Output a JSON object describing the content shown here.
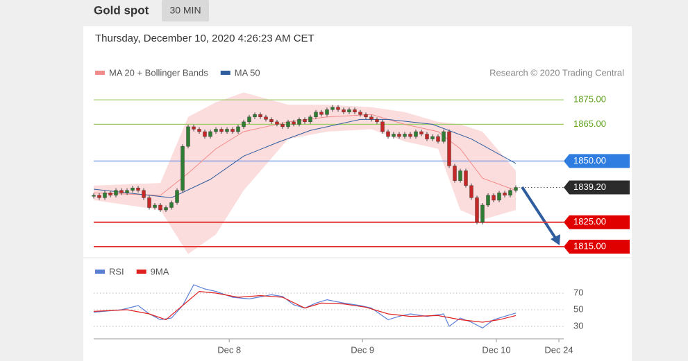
{
  "header": {
    "title": "Gold spot",
    "interval": "30 MIN"
  },
  "chart_data": [
    {
      "type": "candlestick",
      "subtitle": "Thursday, December 10, 2020 4:26:23 AM CET",
      "source": "Research © 2020 Trading Central",
      "up_color": "#2f7d32",
      "down_color": "#c62828",
      "close": [
        1836,
        1835,
        1837,
        1836,
        1838,
        1837,
        1838,
        1839,
        1838,
        1835,
        1831,
        1832,
        1830,
        1831,
        1833,
        1838,
        1856,
        1864,
        1863,
        1862,
        1860,
        1862,
        1863,
        1862,
        1863,
        1862,
        1864,
        1866,
        1868,
        1869,
        1868,
        1867,
        1866,
        1865,
        1864,
        1866,
        1865,
        1867,
        1866,
        1868,
        1870,
        1869,
        1871,
        1872,
        1871,
        1870,
        1871,
        1870,
        1869,
        1868,
        1867,
        1866,
        1862,
        1860,
        1861,
        1860,
        1861,
        1860,
        1862,
        1861,
        1859,
        1860,
        1858,
        1862,
        1848,
        1842,
        1846,
        1840,
        1835,
        1825,
        1832,
        1836,
        1834,
        1837,
        1836,
        1838,
        1839.2
      ],
      "series": [
        {
          "name": "MA 20 + Bollinger Bands",
          "color": "#f28b8b",
          "band_color": "#fbd5d5",
          "x": [
            0,
            12,
            17,
            22,
            27,
            35,
            42,
            50,
            56,
            62,
            66,
            70,
            76
          ],
          "values": [
            1837,
            1836,
            1845,
            1855,
            1862,
            1866,
            1868,
            1869,
            1865,
            1862,
            1855,
            1843,
            1838
          ],
          "upper": [
            1840,
            1841,
            1868,
            1874,
            1878,
            1873,
            1873,
            1872,
            1870,
            1866,
            1865,
            1862,
            1846
          ],
          "lower": [
            1834,
            1830,
            1812,
            1820,
            1838,
            1859,
            1862,
            1863,
            1858,
            1855,
            1830,
            1826,
            1830
          ]
        },
        {
          "name": "MA 50",
          "color": "#2f5d9e",
          "x": [
            0,
            14,
            21,
            27,
            33,
            39,
            48,
            53,
            61,
            68,
            76
          ],
          "values": [
            1838.5,
            1835,
            1842.5,
            1852,
            1857.5,
            1862.5,
            1867,
            1867,
            1865,
            1859,
            1849
          ]
        }
      ],
      "levels": [
        {
          "value": 1875,
          "label": "1875.00",
          "color": "#9ccc65",
          "text_color": "#5da31a",
          "style": "text"
        },
        {
          "value": 1865,
          "label": "1865.00",
          "color": "#9ccc65",
          "text_color": "#5da31a",
          "style": "text"
        },
        {
          "value": 1850,
          "label": "1850.00",
          "color": "#6d95e8",
          "text_color": "#ffffff",
          "tag_color": "#2f7de1",
          "style": "tag"
        },
        {
          "value": 1839.2,
          "label": "1839.20",
          "color": "#555555",
          "text_color": "#ffffff",
          "tag_color": "#2b2b2b",
          "style": "current"
        },
        {
          "value": 1825,
          "label": "1825.00",
          "color": "#e53935",
          "text_color": "#ffffff",
          "tag_color": "#e00000",
          "style": "tag"
        },
        {
          "value": 1815,
          "label": "1815.00",
          "color": "#e53935",
          "text_color": "#ffffff",
          "tag_color": "#e00000",
          "style": "tag"
        }
      ],
      "xlim": [
        0,
        84.5
      ],
      "ylim": [
        1810,
        1880
      ]
    },
    {
      "type": "line",
      "series": [
        {
          "name": "RSI",
          "color": "#5b7fd6",
          "x": [
            0,
            5,
            8,
            10,
            12,
            14,
            16,
            18,
            20,
            22,
            25,
            28,
            32,
            34,
            36,
            38,
            40,
            42,
            45,
            48,
            50,
            53,
            55,
            57,
            60,
            63,
            64,
            66,
            68,
            70,
            72,
            74,
            76
          ],
          "values": [
            47,
            50,
            55,
            45,
            38,
            40,
            55,
            80,
            75,
            72,
            65,
            63,
            68,
            66,
            56,
            52,
            58,
            62,
            58,
            55,
            52,
            38,
            42,
            45,
            42,
            45,
            30,
            40,
            35,
            28,
            38,
            42,
            46
          ]
        },
        {
          "name": "9MA",
          "color": "#e02020",
          "x": [
            0,
            6,
            10,
            13,
            16,
            19,
            22,
            26,
            30,
            34,
            38,
            41,
            45,
            49,
            53,
            57,
            62,
            66,
            70,
            73,
            76
          ],
          "values": [
            48,
            50,
            45,
            38,
            55,
            72,
            70,
            65,
            67,
            65,
            52,
            58,
            57,
            53,
            45,
            42,
            43,
            38,
            35,
            38,
            43
          ]
        }
      ],
      "xlim": [
        0,
        84.5
      ],
      "ylim": [
        15,
        90
      ],
      "yticks": [
        30,
        50,
        70
      ],
      "xticks": [
        {
          "value": 24.4,
          "label": "Dec 8"
        },
        {
          "value": 48.4,
          "label": "Dec 9"
        },
        {
          "value": 72.5,
          "label": "Dec 10"
        },
        {
          "value": 83.75,
          "label": "Dec 24"
        }
      ]
    }
  ]
}
